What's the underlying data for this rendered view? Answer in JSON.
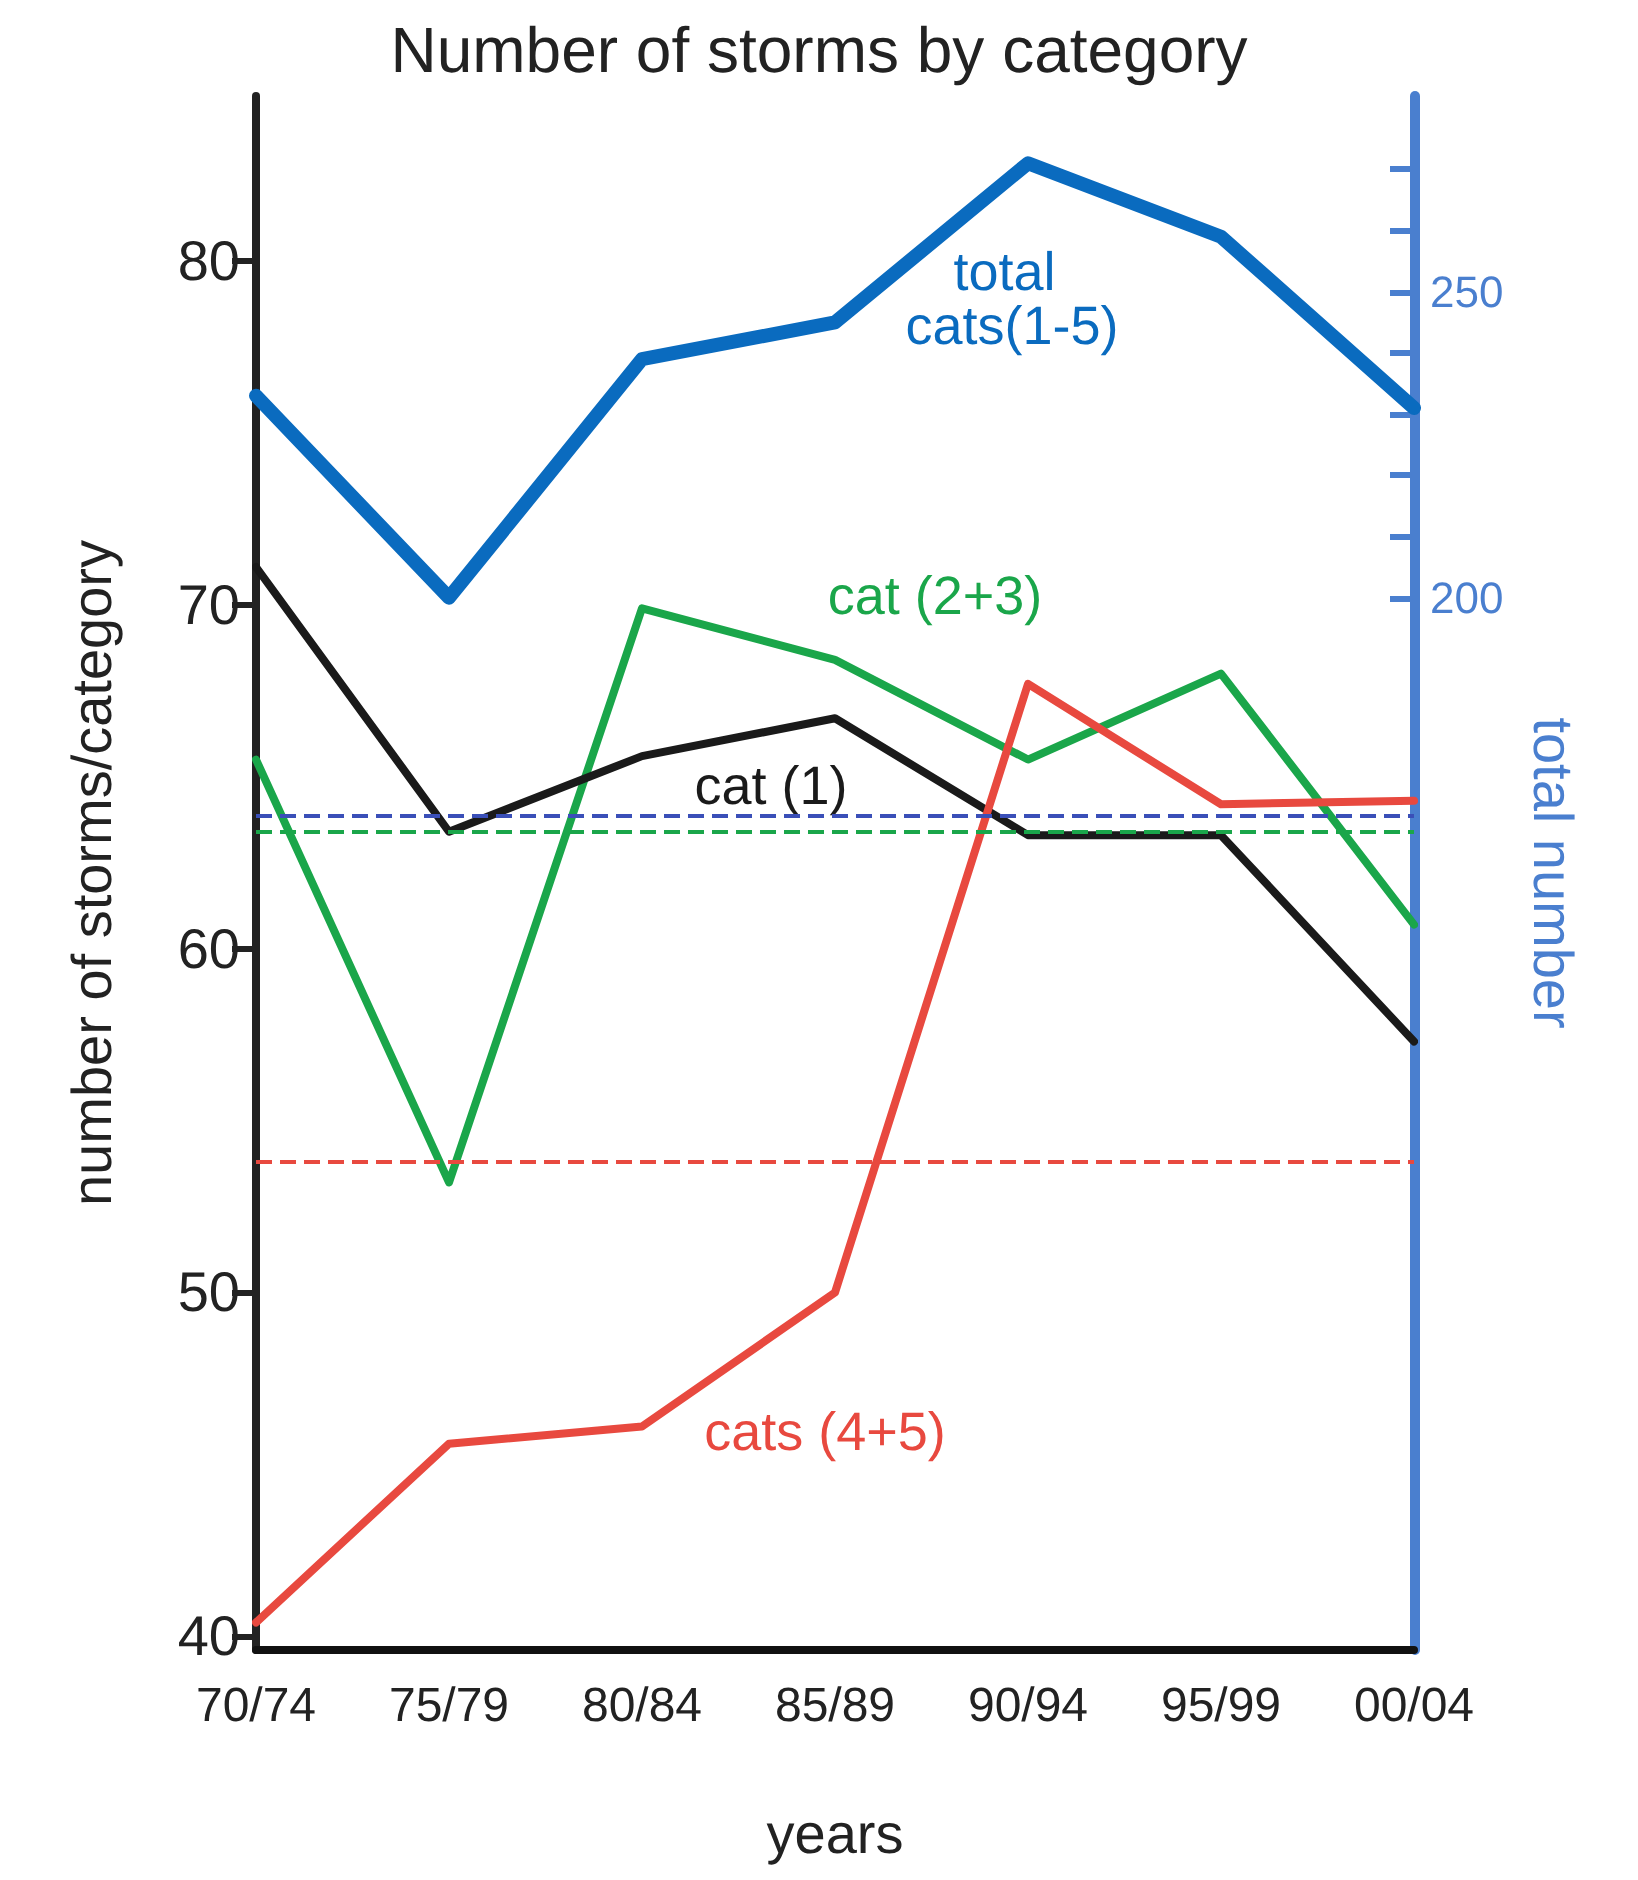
{
  "chart_data": {
    "type": "line",
    "title": "Number of storms by category",
    "xlabel": "years",
    "ylabel": "number of storms/category",
    "y2label": "total number",
    "categories": [
      "70/74",
      "75/79",
      "80/84",
      "85/89",
      "90/94",
      "95/99",
      "00/04"
    ],
    "series": [
      {
        "name": "total cats(1-5)",
        "color": "#0a6bbf",
        "axis": "y2",
        "values": [
          233,
          200,
          239,
          245,
          271,
          259,
          231
        ]
      },
      {
        "name": "cat (2+3)",
        "color": "#1aa64a",
        "values": [
          65.5,
          53.2,
          69.9,
          68.4,
          65.5,
          68.0,
          60.7
        ]
      },
      {
        "name": "cat (1)",
        "color": "#1a1a1a",
        "values": [
          71.1,
          63.4,
          65.6,
          66.7,
          63.3,
          63.3,
          57.3
        ]
      },
      {
        "name": "cats (4+5)",
        "color": "#e8493f",
        "values": [
          40.4,
          45.6,
          46.1,
          50.0,
          67.7,
          64.2,
          64.3
        ]
      }
    ],
    "ylim": [
      39.6,
      84.8
    ],
    "yticks": [
      40,
      50,
      60,
      70,
      80
    ],
    "y2lim": [
      28,
      282
    ],
    "y2ticks": [
      200,
      {
        "value": 210,
        "label": null
      },
      {
        "value": 220,
        "label": null
      },
      {
        "value": 230,
        "label": null
      },
      {
        "value": 240,
        "label": null
      },
      250,
      {
        "value": 260,
        "label": null
      },
      {
        "value": 270,
        "label": null
      }
    ],
    "ref_lines": [
      {
        "axis": "y",
        "value": 63.9,
        "color": "#3a4fb8",
        "line_style": "dashed"
      },
      {
        "axis": "y",
        "value": 63.4,
        "color": "#1aa64a",
        "line_style": "dashed"
      },
      {
        "axis": "y",
        "value": 53.8,
        "color": "#e8493f",
        "line_style": "dashed"
      }
    ],
    "grid": false,
    "legend": false,
    "marker": "none",
    "line_style": "solid"
  }
}
